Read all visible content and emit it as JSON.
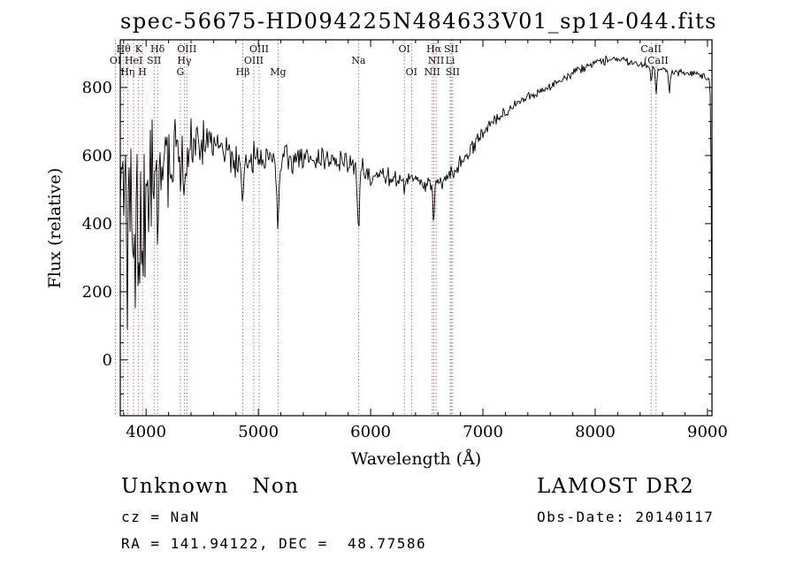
{
  "colors": {
    "background": "#ffffff",
    "trace": "#000000",
    "marker": "#9a4a4a",
    "text": "#000000"
  },
  "annotations": {
    "class_label": "Unknown   Non",
    "survey": "LAMOST DR2",
    "cz": "cz = NaN",
    "obs_date": "Obs-Date: 20140117",
    "ra_dec": "RA = 141.94122, DEC =  48.77586"
  },
  "chart_data": {
    "type": "line",
    "title": "spec-56675-HD094225N484633V01_sp14-044.fits",
    "xlabel": "Wavelength (Å)",
    "ylabel": "Flux (relative)",
    "xlim": [
      3770,
      9040
    ],
    "ylim": [
      -164,
      940
    ],
    "xticks": [
      4000,
      5000,
      6000,
      7000,
      8000,
      9000
    ],
    "yticks": [
      0,
      200,
      400,
      600,
      800
    ],
    "x_minor_step": 200,
    "y_minor_step": 50,
    "grid": false,
    "legend": false,
    "colors": {
      "trace": "#000000",
      "marker": "#9a4a4a"
    },
    "spectral_lines": [
      {
        "label": "Hθ",
        "wl": 3798,
        "row": 0
      },
      {
        "label": "K",
        "wl": 3934,
        "row": 0
      },
      {
        "label": "Hδ",
        "wl": 4102,
        "row": 0
      },
      {
        "label": "OIII",
        "wl": 4363,
        "row": 0
      },
      {
        "label": "OIII",
        "wl": 5007,
        "row": 0
      },
      {
        "label": "OI",
        "wl": 6300,
        "row": 0
      },
      {
        "label": "Hα",
        "wl": 6563,
        "row": 0
      },
      {
        "label": "SII",
        "wl": 6717,
        "row": 0
      },
      {
        "label": "CaII",
        "wl": 8498,
        "row": 0
      },
      {
        "label": "OI",
        "wl": 3727,
        "row": 1
      },
      {
        "label": "HeI",
        "wl": 3889,
        "row": 1
      },
      {
        "label": "SII",
        "wl": 4072,
        "row": 1
      },
      {
        "label": "Hγ",
        "wl": 4340,
        "row": 1
      },
      {
        "label": "OIII",
        "wl": 4959,
        "row": 1
      },
      {
        "label": "Na",
        "wl": 5892,
        "row": 1
      },
      {
        "label": "NII",
        "wl": 6583,
        "row": 1
      },
      {
        "label": "Li",
        "wl": 6708,
        "row": 1
      },
      {
        "label": "(CaII",
        "wl": 8542,
        "row": 1
      },
      {
        "label": "Hη",
        "wl": 3835,
        "row": 2
      },
      {
        "label": "H",
        "wl": 3968,
        "row": 2
      },
      {
        "label": "G",
        "wl": 4305,
        "row": 2
      },
      {
        "label": "Hβ",
        "wl": 4861,
        "row": 2
      },
      {
        "label": "Mg",
        "wl": 5175,
        "row": 2
      },
      {
        "label": "OI",
        "wl": 6364,
        "row": 2
      },
      {
        "label": "NII",
        "wl": 6548,
        "row": 2
      },
      {
        "label": "SII",
        "wl": 6731,
        "row": 2
      }
    ],
    "continuum": [
      [
        3770,
        430
      ],
      [
        3800,
        450
      ],
      [
        3850,
        458
      ],
      [
        3900,
        470
      ],
      [
        3950,
        488
      ],
      [
        4000,
        508
      ],
      [
        4050,
        528
      ],
      [
        4100,
        548
      ],
      [
        4150,
        566
      ],
      [
        4200,
        584
      ],
      [
        4250,
        600
      ],
      [
        4300,
        610
      ],
      [
        4350,
        616
      ],
      [
        4400,
        625
      ],
      [
        4450,
        634
      ],
      [
        4500,
        640
      ],
      [
        4550,
        645
      ],
      [
        4600,
        640
      ],
      [
        4650,
        626
      ],
      [
        4700,
        612
      ],
      [
        4750,
        600
      ],
      [
        4800,
        592
      ],
      [
        4850,
        586
      ],
      [
        4900,
        582
      ],
      [
        4950,
        586
      ],
      [
        5000,
        590
      ],
      [
        5050,
        595
      ],
      [
        5100,
        598
      ],
      [
        5150,
        595
      ],
      [
        5200,
        590
      ],
      [
        5250,
        588
      ],
      [
        5300,
        590
      ],
      [
        5350,
        592
      ],
      [
        5400,
        590
      ],
      [
        5450,
        588
      ],
      [
        5500,
        590
      ],
      [
        5550,
        592
      ],
      [
        5600,
        590
      ],
      [
        5650,
        588
      ],
      [
        5700,
        585
      ],
      [
        5750,
        580
      ],
      [
        5800,
        576
      ],
      [
        5850,
        572
      ],
      [
        5900,
        568
      ],
      [
        5950,
        558
      ],
      [
        6000,
        548
      ],
      [
        6100,
        538
      ],
      [
        6200,
        534
      ],
      [
        6300,
        530
      ],
      [
        6400,
        524
      ],
      [
        6500,
        516
      ],
      [
        6550,
        512
      ],
      [
        6600,
        516
      ],
      [
        6650,
        526
      ],
      [
        6700,
        540
      ],
      [
        6750,
        558
      ],
      [
        6800,
        578
      ],
      [
        6850,
        600
      ],
      [
        6900,
        622
      ],
      [
        6950,
        645
      ],
      [
        7000,
        668
      ],
      [
        7050,
        688
      ],
      [
        7100,
        705
      ],
      [
        7150,
        718
      ],
      [
        7200,
        730
      ],
      [
        7250,
        742
      ],
      [
        7300,
        755
      ],
      [
        7350,
        765
      ],
      [
        7400,
        775
      ],
      [
        7450,
        782
      ],
      [
        7500,
        788
      ],
      [
        7550,
        795
      ],
      [
        7600,
        802
      ],
      [
        7650,
        812
      ],
      [
        7700,
        822
      ],
      [
        7750,
        832
      ],
      [
        7800,
        842
      ],
      [
        7850,
        852
      ],
      [
        7900,
        860
      ],
      [
        7950,
        868
      ],
      [
        8000,
        873
      ],
      [
        8050,
        877
      ],
      [
        8100,
        880
      ],
      [
        8150,
        882
      ],
      [
        8200,
        883
      ],
      [
        8250,
        880
      ],
      [
        8300,
        876
      ],
      [
        8350,
        871
      ],
      [
        8400,
        866
      ],
      [
        8450,
        861
      ],
      [
        8500,
        857
      ],
      [
        8550,
        853
      ],
      [
        8600,
        850
      ],
      [
        8650,
        848
      ],
      [
        8700,
        845
      ],
      [
        8750,
        843
      ],
      [
        8800,
        842
      ],
      [
        8850,
        840
      ],
      [
        8900,
        838
      ],
      [
        8950,
        832
      ],
      [
        9000,
        825
      ],
      [
        9020,
        815
      ],
      [
        9030,
        700
      ],
      [
        9036,
        300
      ],
      [
        9040,
        60
      ]
    ],
    "noise_regions": [
      [
        3770,
        3860,
        400
      ],
      [
        3860,
        3960,
        380
      ],
      [
        3960,
        4060,
        300
      ],
      [
        4060,
        4160,
        230
      ],
      [
        4160,
        4260,
        160
      ],
      [
        4260,
        4420,
        115
      ],
      [
        4420,
        4620,
        90
      ],
      [
        4620,
        4820,
        72
      ],
      [
        4820,
        5020,
        60
      ],
      [
        5020,
        5320,
        52
      ],
      [
        5320,
        5620,
        44
      ],
      [
        5620,
        5860,
        38
      ],
      [
        5860,
        6010,
        42
      ],
      [
        6010,
        6310,
        33
      ],
      [
        6310,
        6610,
        30
      ],
      [
        6610,
        6910,
        28
      ],
      [
        6910,
        7210,
        24
      ],
      [
        7210,
        7610,
        20
      ],
      [
        7610,
        8110,
        16
      ],
      [
        8110,
        8610,
        14
      ],
      [
        8610,
        9045,
        13
      ]
    ],
    "absorption_dips": [
      [
        3835,
        210,
        18
      ],
      [
        3889,
        230,
        18
      ],
      [
        3934,
        290,
        20
      ],
      [
        3968,
        270,
        20
      ],
      [
        4102,
        220,
        18
      ],
      [
        4305,
        90,
        16
      ],
      [
        4340,
        160,
        18
      ],
      [
        4861,
        140,
        18
      ],
      [
        5175,
        210,
        24
      ],
      [
        5892,
        160,
        26
      ],
      [
        6300,
        45,
        14
      ],
      [
        6563,
        95,
        18
      ],
      [
        8498,
        40,
        14
      ],
      [
        8542,
        70,
        16
      ],
      [
        8662,
        60,
        16
      ]
    ]
  }
}
